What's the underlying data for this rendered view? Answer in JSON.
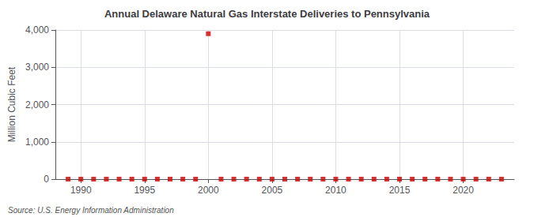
{
  "chart_data": {
    "type": "scatter",
    "title": "Annual Delaware Natural Gas Interstate Deliveries to Pennsylvania",
    "ylabel": "Million Cubic Feet",
    "annotation": "Source: U.S. Energy Information Administration",
    "x": [
      1989,
      1990,
      1991,
      1992,
      1993,
      1994,
      1995,
      1996,
      1997,
      1998,
      1999,
      2000,
      2001,
      2002,
      2003,
      2004,
      2005,
      2006,
      2007,
      2008,
      2009,
      2010,
      2011,
      2012,
      2013,
      2014,
      2015,
      2016,
      2017,
      2018,
      2019,
      2020,
      2021,
      2022,
      2023
    ],
    "values": [
      0,
      0,
      0,
      0,
      0,
      0,
      0,
      0,
      0,
      0,
      0,
      3900,
      0,
      0,
      0,
      0,
      0,
      0,
      0,
      0,
      0,
      0,
      0,
      0,
      0,
      0,
      0,
      0,
      0,
      0,
      0,
      0,
      0,
      0,
      0
    ],
    "xlim": [
      1988,
      2024
    ],
    "xticks": [
      1990,
      1995,
      2000,
      2005,
      2010,
      2015,
      2020
    ],
    "ylim": [
      0,
      4000
    ],
    "yticks": [
      0,
      {
        "value": 1000,
        "label": "1,000"
      },
      {
        "value": 2000,
        "label": "2,000"
      },
      {
        "value": 3000,
        "label": "3,000"
      },
      {
        "value": 4000,
        "label": "4,000"
      }
    ],
    "grid": true,
    "color": "#cc0000",
    "marker": "square"
  }
}
